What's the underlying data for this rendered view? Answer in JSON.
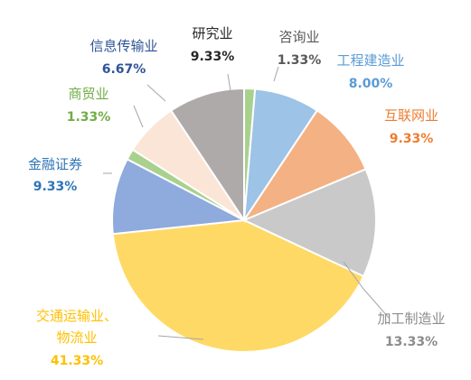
{
  "chart_data": {
    "type": "pie",
    "start_angle_deg": 90,
    "direction": "clockwise",
    "slices": [
      {
        "name": "咨询业",
        "value": 1.33,
        "value_label": "1.33%",
        "color": "#a9d18e",
        "label_color": "#595959",
        "value_color": "#595959"
      },
      {
        "name": "工程建造业",
        "value": 8.0,
        "value_label": "8.00%",
        "color": "#9dc3e6",
        "label_color": "#5b9bd5",
        "value_color": "#5b9bd5"
      },
      {
        "name": "互联网业",
        "value": 9.33,
        "value_label": "9.33%",
        "color": "#f4b183",
        "label_color": "#ed7d31",
        "value_color": "#ed7d31"
      },
      {
        "name": "加工制造业",
        "value": 13.33,
        "value_label": "13.33%",
        "color": "#c9c9c9",
        "label_color": "#8c8c8c",
        "value_color": "#8c8c8c"
      },
      {
        "name_lines": [
          "交通运输业、",
          "物流业"
        ],
        "value": 41.33,
        "value_label": "41.33%",
        "color": "#ffd966",
        "label_color": "#ffc000",
        "value_color": "#ffc000"
      },
      {
        "name": "金融证券",
        "value": 9.33,
        "value_label": "9.33%",
        "color": "#8faadc",
        "label_color": "#2e75b6",
        "value_color": "#2e75b6"
      },
      {
        "name": "商贸业",
        "value": 1.33,
        "value_label": "1.33%",
        "color": "#a9d18e",
        "label_color": "#70ad47",
        "value_color": "#70ad47"
      },
      {
        "name": "信息传输业",
        "value": 6.67,
        "value_label": "6.67%",
        "color": "#fbe5d6",
        "label_color": "#2f5597",
        "value_color": "#2f5597"
      },
      {
        "name": "研究业",
        "value": 9.33,
        "value_label": "9.33%",
        "color": "#aeaaaa",
        "label_color": "#262626",
        "value_color": "#262626"
      }
    ]
  }
}
